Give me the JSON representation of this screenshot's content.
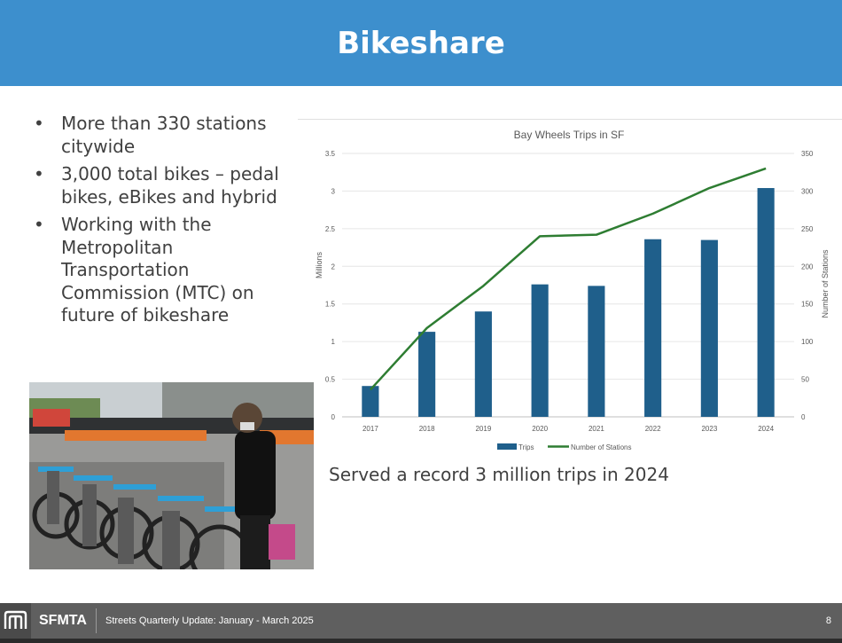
{
  "slide": {
    "title": "Bikeshare",
    "bullets": [
      "More than 330 stations citywide",
      "3,000 total bikes – pedal bikes, eBikes and hybrid",
      "Working with the Metropolitan Transportation Commission (MTC) on future of bikeshare"
    ],
    "caption": "Served a record 3 million trips in 2024"
  },
  "footer": {
    "brand": "SFMTA",
    "text": "Streets Quarterly Update:  January - March 2025",
    "page": "8"
  },
  "colors": {
    "header": "#3d8fcd",
    "bars": "#1f5f8b",
    "line": "#2e7d32",
    "footer": "#5f5f5f"
  },
  "chart_data": {
    "type": "bar",
    "title": "Bay Wheels Trips in SF",
    "categories": [
      "2017",
      "2018",
      "2019",
      "2020",
      "2021",
      "2022",
      "2023",
      "2024"
    ],
    "series": [
      {
        "name": "Trips",
        "type": "bar",
        "axis": "left",
        "values": [
          0.41,
          1.13,
          1.4,
          1.76,
          1.74,
          2.36,
          2.35,
          3.04
        ]
      },
      {
        "name": "Number of Stations",
        "type": "line",
        "axis": "right",
        "values": [
          36,
          118,
          174,
          240,
          242,
          270,
          304,
          330
        ]
      }
    ],
    "ylabel": "Millions",
    "y2label": "Number of Stations",
    "ylim": [
      0,
      3.5
    ],
    "y2lim": [
      0,
      350
    ],
    "yticks": [
      "0",
      "0.5",
      "1",
      "1.5",
      "2",
      "2.5",
      "3",
      "3.5"
    ],
    "y2ticks": [
      "0",
      "50",
      "100",
      "150",
      "200",
      "250",
      "300",
      "350"
    ],
    "grid": true,
    "legend": "bottom"
  }
}
